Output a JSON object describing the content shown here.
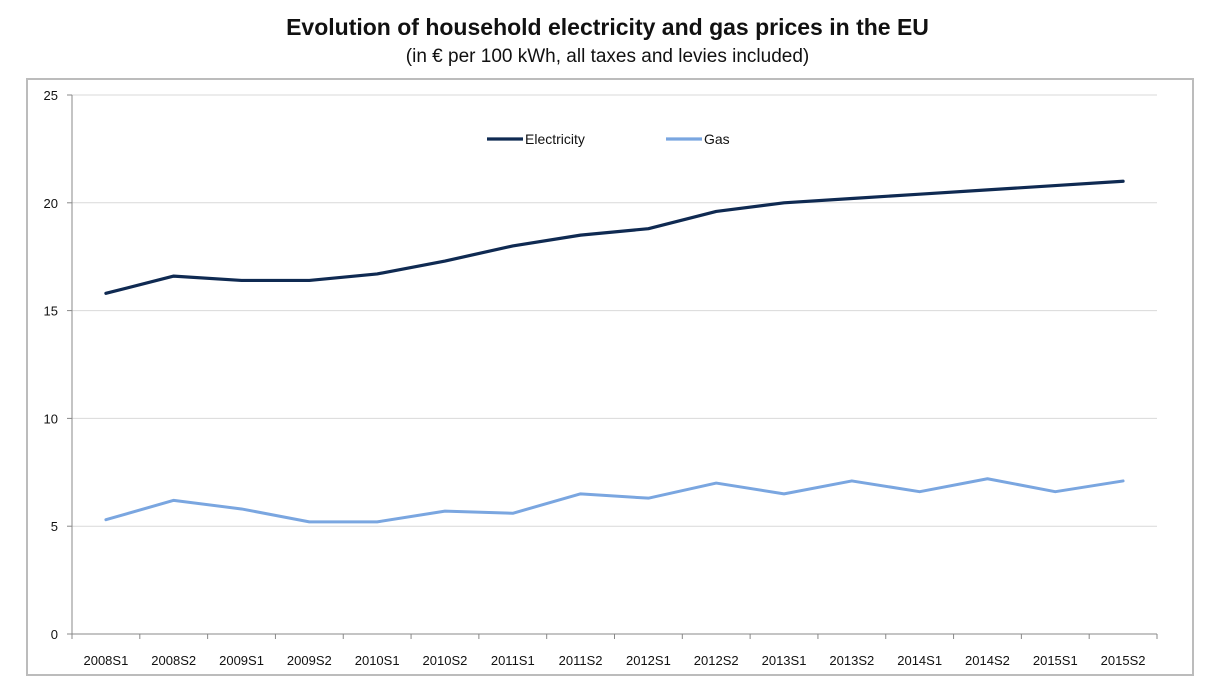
{
  "chart_data": {
    "type": "line",
    "title": "Evolution of household electricity and gas prices in the EU",
    "subtitle": "(in € per 100 kWh, all taxes and levies included)",
    "xlabel": "",
    "ylabel": "",
    "ylim": [
      0,
      25
    ],
    "yticks": [
      0,
      5,
      10,
      15,
      20,
      25
    ],
    "grid": true,
    "legend_position": "top-center",
    "categories": [
      "2008S1",
      "2008S2",
      "2009S1",
      "2009S2",
      "2010S1",
      "2010S2",
      "2011S1",
      "2011S2",
      "2012S1",
      "2012S2",
      "2013S1",
      "2013S2",
      "2014S1",
      "2014S2",
      "2015S1",
      "2015S2"
    ],
    "series": [
      {
        "name": "Electricity",
        "color": "#0f2a52",
        "values": [
          15.8,
          16.6,
          16.4,
          16.4,
          16.7,
          17.3,
          18.0,
          18.5,
          18.8,
          19.6,
          20.0,
          20.2,
          20.4,
          20.6,
          20.8,
          21.0
        ]
      },
      {
        "name": "Gas",
        "color": "#7aa6e0",
        "values": [
          5.3,
          6.2,
          5.8,
          5.2,
          5.2,
          5.7,
          5.6,
          6.5,
          6.3,
          7.0,
          6.5,
          7.1,
          6.6,
          7.2,
          6.6,
          7.1
        ]
      }
    ]
  }
}
